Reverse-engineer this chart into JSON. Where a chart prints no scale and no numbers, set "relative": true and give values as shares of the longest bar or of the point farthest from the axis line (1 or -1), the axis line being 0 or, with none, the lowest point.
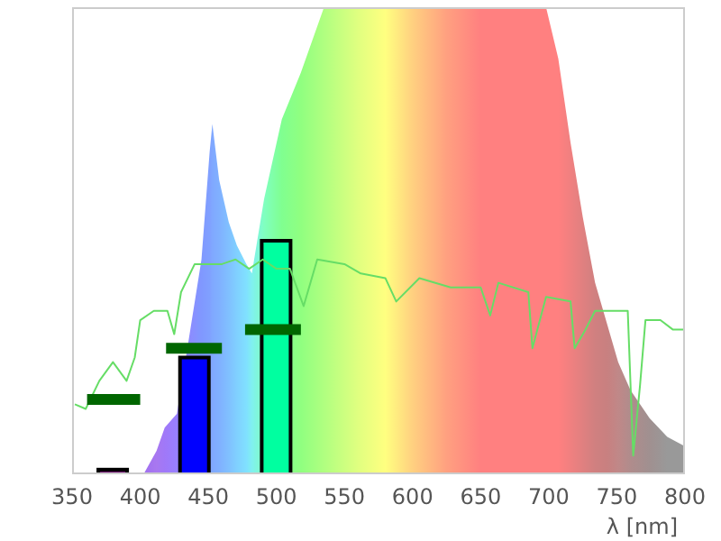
{
  "chart_data": {
    "type": "area",
    "xlabel": "λ [nm]",
    "xlim": [
      350,
      800
    ],
    "xticks": [
      350,
      400,
      450,
      500,
      550,
      600,
      650,
      700,
      750,
      800
    ],
    "relative": true,
    "series": [
      {
        "x": [
          350,
          395,
          403,
          412,
          418,
          427,
          434,
          445,
          451,
          453,
          458,
          465,
          471,
          478,
          482,
          491,
          504,
          518,
          535,
          560,
          580,
          600,
          625,
          650,
          698,
          707,
          716,
          725,
          734,
          743,
          751,
          760,
          774,
          787,
          800
        ],
        "values": [
          0,
          0,
          0.003,
          0.05,
          0.1,
          0.13,
          null,
          0.46,
          0.69,
          0.75,
          0.63,
          0.54,
          0.49,
          0.45,
          0.43,
          0.59,
          0.76,
          0.86,
          1,
          1,
          1,
          1,
          1,
          1,
          1,
          0.89,
          0.71,
          0.55,
          0.41,
          0.32,
          0.24,
          0.18,
          0.12,
          0.08,
          0.06
        ],
        "colors": [
          "#a070f0",
          "#a070f0",
          "#a070f0",
          "#a878f0",
          "#a078f8",
          "#9880ff",
          "#9088ff",
          "#8098ff",
          "#80a0ff",
          "#80a8ff",
          "#80b0ff",
          "#80c0ff",
          "#80d0ff",
          "#80e0ff",
          "#80f0f0",
          "#80ffc0",
          "#80ff90",
          "#90ff80",
          "#b0ff80",
          "#e0ff80",
          "#ffff80",
          "#ffd080",
          "#ffa080",
          "#ff8080",
          "#ff8080",
          "#ff8080",
          "#f08080",
          "#e08080",
          "#d08080",
          "#c88080",
          "#c08888",
          "#b08c8c",
          "#a09090",
          "#999999",
          "#999999"
        ]
      },
      {
        "type": "line",
        "color": "#66dd66",
        "x": [
          352,
          360,
          370,
          380,
          390,
          396,
          400,
          410,
          420,
          425,
          430,
          440,
          450,
          460,
          470,
          480,
          490,
          500,
          510,
          520,
          530,
          550,
          562,
          580,
          588,
          605,
          628,
          650,
          657,
          663,
          685,
          688,
          698,
          716,
          719,
          727,
          734,
          743,
          758,
          762,
          767,
          771,
          782,
          791,
          800
        ],
        "values": [
          0.15,
          0.14,
          0.2,
          0.24,
          0.2,
          0.25,
          0.33,
          0.35,
          0.35,
          0.3,
          0.39,
          0.45,
          0.45,
          0.45,
          0.46,
          0.44,
          0.46,
          0.44,
          0.44,
          0.36,
          0.46,
          0.45,
          0.43,
          0.42,
          0.37,
          0.42,
          0.4,
          0.4,
          0.34,
          0.41,
          0.39,
          0.27,
          0.38,
          0.37,
          0.27,
          0.31,
          0.35,
          0.35,
          0.35,
          0.04,
          0.19,
          0.33,
          0.33,
          0.31,
          0.31
        ]
      },
      {
        "type": "line",
        "color": "#006600",
        "x": [
          361,
          400,
          410,
          419,
          460,
          470,
          477,
          518
        ],
        "values": [
          0.16,
          0.16,
          null,
          0.27,
          0.27,
          null,
          0.31,
          0.31
        ]
      },
      {
        "type": "bar",
        "x": [
          380,
          440,
          500
        ],
        "values": [
          0.01,
          0.25,
          0.5
        ],
        "colors": [
          "#660066",
          "#0000ff",
          "#00ffa0"
        ]
      }
    ]
  }
}
